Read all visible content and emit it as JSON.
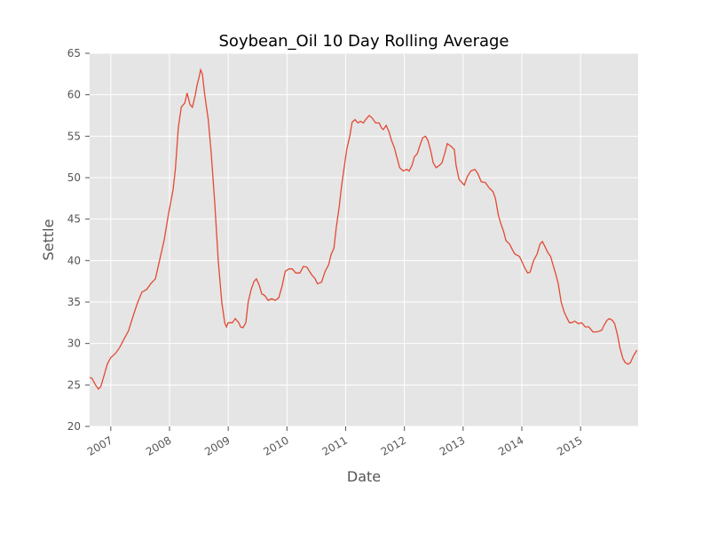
{
  "chart_data": {
    "type": "line",
    "title": "Soybean_Oil 10 Day Rolling Average",
    "x_label": "Date",
    "y_label": "Settle",
    "x": [
      2006.64,
      2006.68,
      2006.74,
      2006.79,
      2006.83,
      2006.88,
      2006.94,
      2007.0,
      2007.08,
      2007.15,
      2007.23,
      2007.3,
      2007.38,
      2007.45,
      2007.53,
      2007.61,
      2007.68,
      2007.76,
      2007.83,
      2007.91,
      2007.98,
      2008.06,
      2008.1,
      2008.15,
      2008.2,
      2008.26,
      2008.3,
      2008.35,
      2008.39,
      2008.44,
      2008.47,
      2008.5,
      2008.53,
      2008.56,
      2008.6,
      2008.66,
      2008.71,
      2008.77,
      2008.83,
      2008.89,
      2008.94,
      2008.97,
      2009.0,
      2009.07,
      2009.12,
      2009.18,
      2009.21,
      2009.25,
      2009.3,
      2009.34,
      2009.39,
      2009.44,
      2009.48,
      2009.53,
      2009.57,
      2009.62,
      2009.68,
      2009.74,
      2009.8,
      2009.86,
      2009.92,
      2009.97,
      2010.03,
      2010.09,
      2010.15,
      2010.22,
      2010.28,
      2010.34,
      2010.42,
      2010.48,
      2010.52,
      2010.59,
      2010.65,
      2010.71,
      2010.75,
      2010.8,
      2010.84,
      2010.89,
      2010.93,
      2010.98,
      2011.02,
      2011.07,
      2011.11,
      2011.16,
      2011.21,
      2011.25,
      2011.3,
      2011.34,
      2011.4,
      2011.45,
      2011.51,
      2011.57,
      2011.61,
      2011.64,
      2011.69,
      2011.74,
      2011.78,
      2011.83,
      2011.87,
      2011.92,
      2011.98,
      2012.04,
      2012.08,
      2012.13,
      2012.17,
      2012.22,
      2012.26,
      2012.31,
      2012.36,
      2012.4,
      2012.45,
      2012.49,
      2012.54,
      2012.6,
      2012.64,
      2012.69,
      2012.73,
      2012.79,
      2012.85,
      2012.88,
      2012.93,
      2012.98,
      2013.02,
      2013.07,
      2013.13,
      2013.2,
      2013.25,
      2013.31,
      2013.38,
      2013.44,
      2013.51,
      2013.55,
      2013.6,
      2013.64,
      2013.69,
      2013.73,
      2013.79,
      2013.84,
      2013.88,
      2013.96,
      2014.0,
      2014.05,
      2014.1,
      2014.14,
      2014.2,
      2014.26,
      2014.31,
      2014.35,
      2014.4,
      2014.44,
      2014.49,
      2014.53,
      2014.58,
      2014.62,
      2014.67,
      2014.72,
      2014.76,
      2014.81,
      2014.85,
      2014.9,
      2014.96,
      2015.02,
      2015.08,
      2015.14,
      2015.21,
      2015.28,
      2015.36,
      2015.4,
      2015.45,
      2015.49,
      2015.54,
      2015.58,
      2015.63,
      2015.67,
      2015.72,
      2015.76,
      2015.81,
      2015.85,
      2015.9,
      2015.96
    ],
    "series": [
      {
        "name": "Settle",
        "color": "#e24a33",
        "values": [
          25.9,
          25.8,
          25,
          24.5,
          24.8,
          26,
          27.5,
          28.3,
          28.8,
          29.5,
          30.6,
          31.5,
          33.3,
          34.8,
          36.2,
          36.5,
          37.2,
          37.8,
          40,
          42.5,
          45.5,
          48.5,
          51,
          56,
          58.5,
          59,
          60.2,
          58.8,
          58.5,
          60,
          61.2,
          62,
          63,
          62.5,
          60,
          57,
          53,
          47,
          40,
          35,
          32.5,
          32,
          32.5,
          32.5,
          33,
          32.5,
          32,
          31.9,
          32.5,
          35,
          36.5,
          37.5,
          37.8,
          37,
          36,
          35.8,
          35.2,
          35.4,
          35.2,
          35.5,
          37,
          38.7,
          39,
          39,
          38.5,
          38.5,
          39.3,
          39.2,
          38.3,
          37.8,
          37.2,
          37.4,
          38.7,
          39.5,
          40.7,
          41.5,
          44,
          46.5,
          49,
          51.5,
          53.5,
          55,
          56.7,
          57,
          56.6,
          56.8,
          56.6,
          57,
          57.5,
          57.2,
          56.6,
          56.6,
          56,
          55.8,
          56.3,
          55.5,
          54.5,
          53.6,
          52.5,
          51.2,
          50.8,
          51,
          50.8,
          51.5,
          52.5,
          52.9,
          53.8,
          54.8,
          55,
          54.5,
          53.2,
          51.8,
          51.2,
          51.5,
          51.8,
          53,
          54.1,
          53.8,
          53.4,
          51.5,
          49.8,
          49.4,
          49.1,
          50.1,
          50.8,
          51,
          50.5,
          49.5,
          49.4,
          48.8,
          48.3,
          47.5,
          45.5,
          44.5,
          43.5,
          42.4,
          42,
          41.3,
          40.8,
          40.5,
          39.9,
          39.1,
          38.5,
          38.6,
          40,
          40.8,
          42,
          42.3,
          41.6,
          41,
          40.5,
          39.5,
          38.3,
          37.2,
          35,
          33.8,
          33.2,
          32.5,
          32.5,
          32.7,
          32.4,
          32.5,
          32,
          32,
          31.4,
          31.4,
          31.6,
          32.2,
          32.8,
          33,
          32.8,
          32.4,
          31,
          29.5,
          28.2,
          27.7,
          27.5,
          27.7,
          28.5,
          29.2
        ]
      }
    ],
    "xlim": [
      2006.64,
      2015.98
    ],
    "xticks": [
      2007,
      2008,
      2009,
      2010,
      2011,
      2012,
      2013,
      2014,
      2015
    ],
    "ylim": [
      20,
      65
    ],
    "yticks": [
      20,
      25,
      30,
      35,
      40,
      45,
      50,
      55,
      60,
      65
    ],
    "grid": true
  }
}
